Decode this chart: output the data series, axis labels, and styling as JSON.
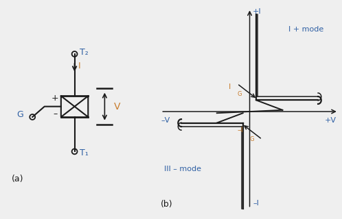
{
  "bg_color": "#efefef",
  "label_color_blue": "#2e5fa3",
  "label_color_orange": "#c87d2e",
  "line_color": "#1a1a1a",
  "title_a": "(a)",
  "title_b": "(b)",
  "text_T2": "T₂",
  "text_T1": "T₁",
  "text_I": "I",
  "text_V": "V",
  "text_G": "G",
  "text_plusI": "+I",
  "text_minusI": "–I",
  "text_plusV": "+V",
  "text_minusV": "–V",
  "text_mode_pos": "I + mode",
  "text_mode_neg": "III – mode"
}
